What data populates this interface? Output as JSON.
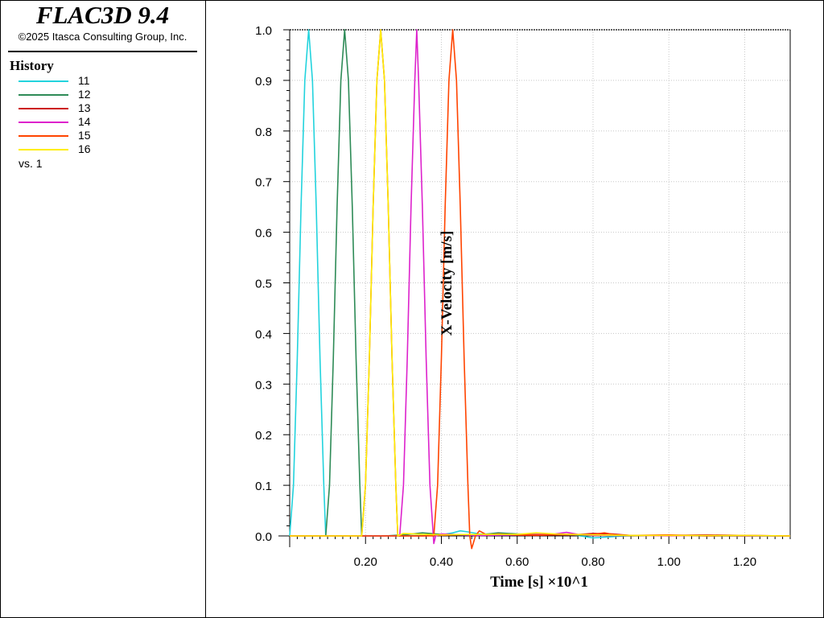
{
  "app": {
    "title": "FLAC3D 9.4",
    "copyright": "©2025 Itasca Consulting Group, Inc."
  },
  "legend": {
    "heading": "History",
    "items": [
      {
        "label": "11",
        "color": "#22d3dd"
      },
      {
        "label": "12",
        "color": "#2e8b57"
      },
      {
        "label": "13",
        "color": "#cc1111"
      },
      {
        "label": "14",
        "color": "#dd22cc"
      },
      {
        "label": "15",
        "color": "#ff4400"
      },
      {
        "label": "16",
        "color": "#ffee00"
      }
    ],
    "vs_label": "vs. 1"
  },
  "chart_data": {
    "type": "line",
    "xlabel": "Time [s] ×10^1",
    "ylabel": "X-Velocity [m/s]",
    "xlim": [
      0.0,
      1.32
    ],
    "ylim": [
      0.0,
      1.0
    ],
    "xticks": [
      "0.20",
      "0.40",
      "0.60",
      "0.80",
      "1.00",
      "1.20"
    ],
    "xtick_values": [
      0.2,
      0.4,
      0.6,
      0.8,
      1.0,
      1.2
    ],
    "yticks": [
      "0.0",
      "0.1",
      "0.2",
      "0.3",
      "0.4",
      "0.5",
      "0.6",
      "0.7",
      "0.8",
      "0.9",
      "1.0"
    ],
    "ytick_values": [
      0.0,
      0.1,
      0.2,
      0.3,
      0.4,
      0.5,
      0.6,
      0.7,
      0.8,
      0.9,
      1.0
    ],
    "grid": true,
    "series": [
      {
        "name": "11",
        "color": "#22d3dd",
        "x": [
          0.0,
          0.01,
          0.02,
          0.03,
          0.04,
          0.05,
          0.06,
          0.07,
          0.08,
          0.09,
          0.095,
          0.12,
          0.2,
          0.3,
          0.4,
          0.43,
          0.45,
          0.47,
          0.5,
          0.6,
          0.75,
          0.8,
          0.9,
          1.0,
          1.1,
          1.2,
          1.32
        ],
        "y": [
          0.0,
          0.1,
          0.35,
          0.65,
          0.9,
          1.0,
          0.9,
          0.65,
          0.35,
          0.1,
          0.0,
          0.0,
          0.0,
          0.0,
          0.002,
          0.006,
          0.01,
          0.008,
          0.004,
          0.003,
          0.002,
          -0.004,
          0.001,
          0.001,
          0.001,
          0.0,
          0.0
        ]
      },
      {
        "name": "12",
        "color": "#2e8b57",
        "x": [
          0.0,
          0.095,
          0.105,
          0.115,
          0.125,
          0.135,
          0.145,
          0.155,
          0.165,
          0.175,
          0.185,
          0.19,
          0.25,
          0.3,
          0.35,
          0.4,
          0.5,
          0.55,
          0.6,
          0.7,
          0.8,
          0.9,
          1.0,
          1.1,
          1.2,
          1.32
        ],
        "y": [
          0.0,
          0.0,
          0.1,
          0.35,
          0.65,
          0.9,
          1.0,
          0.9,
          0.65,
          0.35,
          0.1,
          0.0,
          0.0,
          0.002,
          0.006,
          0.003,
          0.002,
          0.006,
          0.004,
          0.002,
          0.001,
          0.0,
          0.001,
          0.0,
          0.0,
          0.0
        ]
      },
      {
        "name": "13",
        "color": "#cc1111",
        "x": [
          0.0,
          0.19,
          0.2,
          0.21,
          0.22,
          0.23,
          0.24,
          0.25,
          0.26,
          0.27,
          0.28,
          0.285,
          0.35,
          0.45,
          0.55,
          0.65,
          0.7,
          0.75,
          0.8,
          0.85,
          0.9,
          1.0,
          1.1,
          1.2,
          1.32
        ],
        "y": [
          0.0,
          0.0,
          0.1,
          0.35,
          0.65,
          0.9,
          1.0,
          0.9,
          0.65,
          0.35,
          0.1,
          0.0,
          0.0,
          0.002,
          0.002,
          0.001,
          0.002,
          0.002,
          0.005,
          0.004,
          0.001,
          0.001,
          0.002,
          0.001,
          0.0
        ]
      },
      {
        "name": "14",
        "color": "#dd22cc",
        "x": [
          0.0,
          0.29,
          0.3,
          0.31,
          0.32,
          0.33,
          0.335,
          0.34,
          0.35,
          0.36,
          0.37,
          0.38,
          0.385,
          0.4,
          0.45,
          0.5,
          0.6,
          0.7,
          0.73,
          0.76,
          0.8,
          0.9,
          1.0,
          1.1,
          1.2,
          1.32
        ],
        "y": [
          0.0,
          0.0,
          0.1,
          0.35,
          0.65,
          0.9,
          1.0,
          0.9,
          0.65,
          0.35,
          0.1,
          -0.015,
          0.0,
          0.004,
          0.002,
          0.001,
          0.002,
          0.004,
          0.007,
          0.003,
          0.001,
          0.001,
          0.0,
          0.001,
          0.0,
          0.0
        ]
      },
      {
        "name": "15",
        "color": "#ff4400",
        "x": [
          0.0,
          0.38,
          0.39,
          0.4,
          0.41,
          0.42,
          0.43,
          0.44,
          0.45,
          0.46,
          0.47,
          0.475,
          0.48,
          0.49,
          0.5,
          0.52,
          0.55,
          0.6,
          0.7,
          0.8,
          0.83,
          0.86,
          0.9,
          1.0,
          1.1,
          1.2,
          1.32
        ],
        "y": [
          0.0,
          0.0,
          0.1,
          0.35,
          0.65,
          0.9,
          1.0,
          0.9,
          0.65,
          0.35,
          0.1,
          0.0,
          -0.025,
          0.0,
          0.01,
          0.002,
          0.004,
          0.002,
          0.002,
          0.003,
          0.006,
          0.002,
          0.001,
          0.002,
          0.0,
          0.001,
          0.0
        ]
      },
      {
        "name": "16",
        "color": "#ffee00",
        "x": [
          0.0,
          0.19,
          0.2,
          0.21,
          0.22,
          0.23,
          0.24,
          0.25,
          0.26,
          0.27,
          0.28,
          0.285,
          0.3,
          0.35,
          0.4,
          0.5,
          0.6,
          0.65,
          0.7,
          0.8,
          0.9,
          1.0,
          1.1,
          1.2,
          1.32
        ],
        "y": [
          0.0,
          0.0,
          0.1,
          0.35,
          0.65,
          0.9,
          1.0,
          0.9,
          0.65,
          0.35,
          0.1,
          0.0,
          0.005,
          0.003,
          0.002,
          0.003,
          0.003,
          0.006,
          0.004,
          0.002,
          0.001,
          0.001,
          0.001,
          0.001,
          0.0
        ]
      }
    ]
  }
}
